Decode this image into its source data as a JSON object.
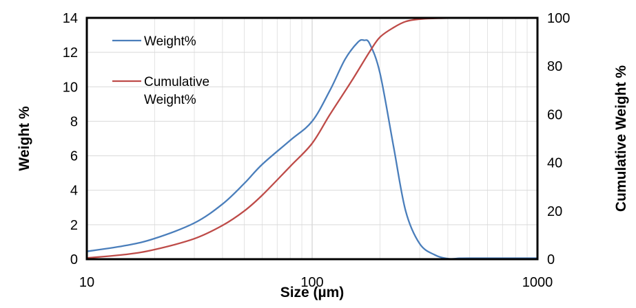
{
  "chart_data": {
    "type": "line",
    "xlabel": "Size (µm)",
    "ylabel": "Weight %",
    "y2label": "Cumulative Weight %",
    "x_scale": "log",
    "xlim": [
      10,
      1000
    ],
    "ylim": [
      0,
      14
    ],
    "y2lim": [
      0,
      100
    ],
    "x_ticks": [
      {
        "v": 10,
        "label": "10"
      },
      {
        "v": 100,
        "label": "100"
      },
      {
        "v": 1000,
        "label": "1000"
      }
    ],
    "y_ticks": [
      {
        "v": 0,
        "label": "0"
      },
      {
        "v": 2,
        "label": "2"
      },
      {
        "v": 4,
        "label": "4"
      },
      {
        "v": 6,
        "label": "6"
      },
      {
        "v": 8,
        "label": "8"
      },
      {
        "v": 10,
        "label": "10"
      },
      {
        "v": 12,
        "label": "12"
      },
      {
        "v": 14,
        "label": "14"
      }
    ],
    "y2_ticks": [
      {
        "v": 0,
        "label": "0"
      },
      {
        "v": 20,
        "label": "20"
      },
      {
        "v": 40,
        "label": "40"
      },
      {
        "v": 60,
        "label": "60"
      },
      {
        "v": 80,
        "label": "80"
      },
      {
        "v": 100,
        "label": "100"
      }
    ],
    "grid": true,
    "legend_position": "top-left",
    "series": [
      {
        "name_lines": [
          "Weight%"
        ],
        "axis": "left",
        "color": "#4a7ebb",
        "x": [
          10,
          15,
          20,
          30,
          40,
          50,
          60,
          80,
          100,
          120,
          140,
          160,
          170,
          180,
          200,
          230,
          260,
          300,
          350,
          400,
          450,
          500,
          600,
          800,
          1000
        ],
        "y": [
          0.45,
          0.8,
          1.2,
          2.1,
          3.2,
          4.4,
          5.5,
          6.9,
          8.0,
          9.8,
          11.6,
          12.6,
          12.7,
          12.5,
          10.8,
          6.5,
          2.8,
          0.9,
          0.25,
          0.03,
          0.05,
          0.06,
          0.06,
          0.06,
          0.06
        ]
      },
      {
        "name_lines": [
          "Cumulative",
          "Weight%"
        ],
        "axis": "right",
        "color": "#be4b48",
        "x": [
          10,
          15,
          20,
          30,
          40,
          50,
          60,
          80,
          100,
          120,
          150,
          180,
          200,
          230,
          260,
          300,
          350,
          400,
          500,
          700,
          1000
        ],
        "y": [
          0.5,
          2.0,
          4.0,
          8.5,
          14.0,
          20.0,
          26.5,
          38.5,
          48.0,
          60.0,
          74.0,
          86.0,
          92.0,
          96.0,
          98.5,
          99.5,
          99.8,
          99.9,
          100,
          100,
          100
        ]
      }
    ]
  }
}
